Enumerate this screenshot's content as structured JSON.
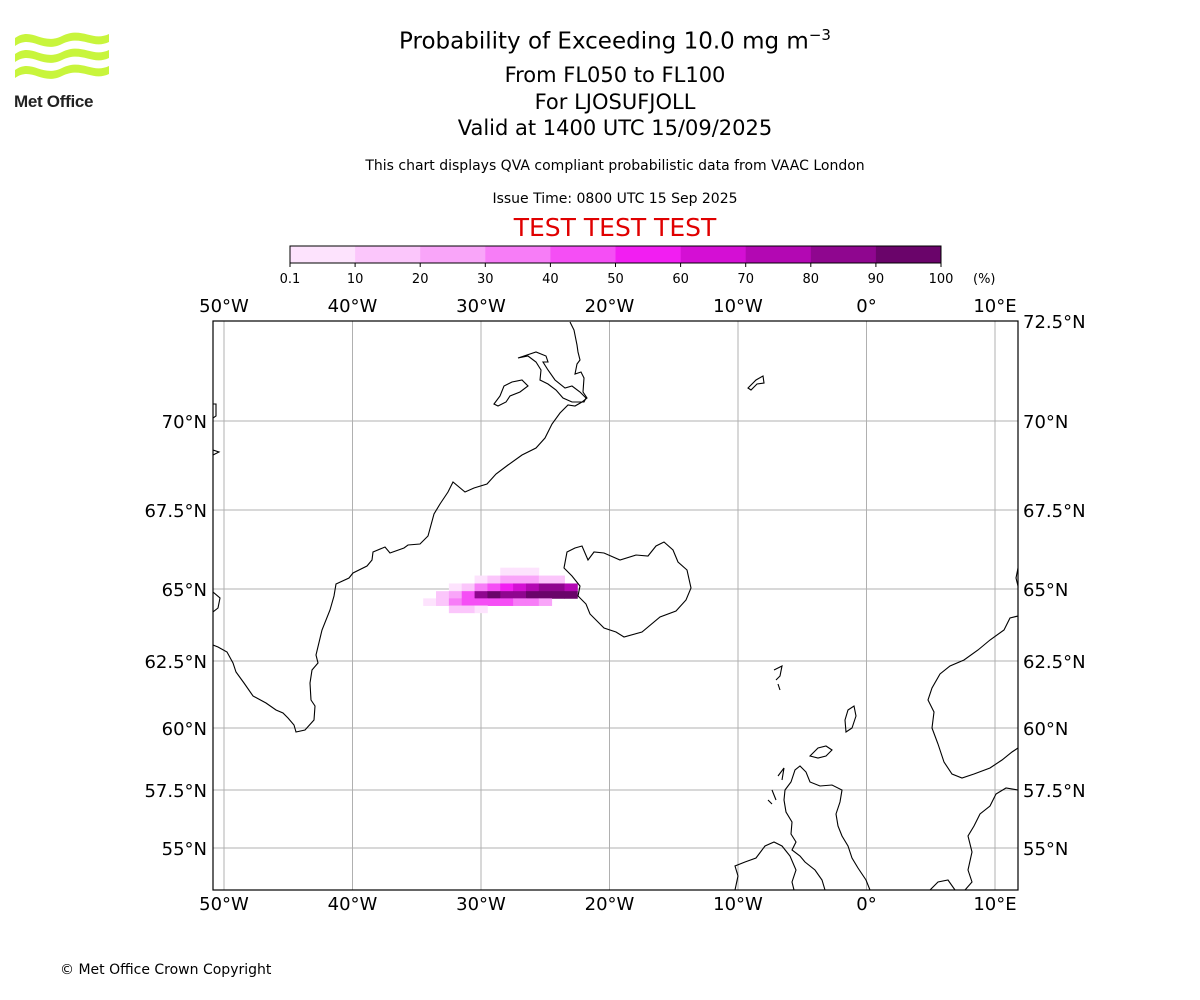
{
  "header": {
    "title_main": "Probability of Exceeding 10.0 mg m",
    "title_exponent": "−3",
    "levels": "From FL050 to FL100",
    "source": "For LJOSUFJOLL",
    "valid": "Valid at 1400 UTC 15/09/2025",
    "qva_note": "This chart displays QVA compliant probabilistic data from VAAC London",
    "issue_time": "Issue Time: 0800 UTC 15 Sep 2025",
    "test_banner": "TEST TEST TEST"
  },
  "logo": {
    "text": "Met Office",
    "color": "#c8f53c"
  },
  "footer": {
    "copyright": "© Met Office Crown Copyright"
  },
  "colorbar": {
    "ticks": [
      "0.1",
      "10",
      "20",
      "30",
      "40",
      "50",
      "60",
      "70",
      "80",
      "90",
      "100"
    ],
    "unit": "(%)",
    "colors": [
      "#fde3fd",
      "#fbc6fb",
      "#f9a5f9",
      "#f77df7",
      "#f54ef5",
      "#f21ef2",
      "#d40fd4",
      "#b308b3",
      "#8f068f",
      "#6a046a"
    ]
  },
  "map": {
    "lon_labels": [
      "50°W",
      "40°W",
      "30°W",
      "20°W",
      "10°W",
      "0°",
      "10°E"
    ],
    "lat_labels_left": [
      "70°N",
      "67.5°N",
      "65°N",
      "62.5°N",
      "60°N",
      "57.5°N",
      "55°N"
    ],
    "lat_labels_right": [
      "72.5°N",
      "70°N",
      "67.5°N",
      "65°N",
      "62.5°N",
      "60°N",
      "57.5°N",
      "55°N"
    ],
    "lon_range": [
      -50.7,
      12
    ],
    "lat_range": [
      53.5,
      72.5
    ],
    "grid_color": "#b0b0b0",
    "coast_color": "#000000"
  },
  "plume": {
    "description_units": "probability percent by lon/lat cell",
    "cells": [
      {
        "lon": -28,
        "lat": 65.55,
        "p": 5
      },
      {
        "lon": -27,
        "lat": 65.55,
        "p": 5
      },
      {
        "lon": -26,
        "lat": 65.55,
        "p": 3
      },
      {
        "lon": -30,
        "lat": 65.3,
        "p": 8
      },
      {
        "lon": -29,
        "lat": 65.3,
        "p": 15
      },
      {
        "lon": -28,
        "lat": 65.3,
        "p": 25
      },
      {
        "lon": -27,
        "lat": 65.3,
        "p": 25
      },
      {
        "lon": -26,
        "lat": 65.3,
        "p": 20
      },
      {
        "lon": -25,
        "lat": 65.3,
        "p": 15
      },
      {
        "lon": -24,
        "lat": 65.3,
        "p": 12
      },
      {
        "lon": -32,
        "lat": 65.05,
        "p": 8
      },
      {
        "lon": -31,
        "lat": 65.05,
        "p": 15
      },
      {
        "lon": -30,
        "lat": 65.05,
        "p": 30
      },
      {
        "lon": -29,
        "lat": 65.05,
        "p": 45
      },
      {
        "lon": -28,
        "lat": 65.05,
        "p": 55
      },
      {
        "lon": -27,
        "lat": 65.05,
        "p": 65
      },
      {
        "lon": -26,
        "lat": 65.05,
        "p": 75
      },
      {
        "lon": -25,
        "lat": 65.05,
        "p": 85
      },
      {
        "lon": -24,
        "lat": 65.05,
        "p": 85
      },
      {
        "lon": -23,
        "lat": 65.05,
        "p": 75
      },
      {
        "lon": -33,
        "lat": 64.8,
        "p": 10
      },
      {
        "lon": -32,
        "lat": 64.8,
        "p": 25
      },
      {
        "lon": -31,
        "lat": 64.8,
        "p": 45
      },
      {
        "lon": -30,
        "lat": 64.8,
        "p": 80
      },
      {
        "lon": -29,
        "lat": 64.8,
        "p": 90
      },
      {
        "lon": -28,
        "lat": 64.8,
        "p": 85
      },
      {
        "lon": -27,
        "lat": 64.8,
        "p": 88
      },
      {
        "lon": -26,
        "lat": 64.8,
        "p": 92
      },
      {
        "lon": -25,
        "lat": 64.8,
        "p": 95
      },
      {
        "lon": -24,
        "lat": 64.8,
        "p": 95
      },
      {
        "lon": -23,
        "lat": 64.8,
        "p": 95
      },
      {
        "lon": -34,
        "lat": 64.55,
        "p": 5
      },
      {
        "lon": -33,
        "lat": 64.55,
        "p": 15
      },
      {
        "lon": -32,
        "lat": 64.55,
        "p": 30
      },
      {
        "lon": -31,
        "lat": 64.55,
        "p": 45
      },
      {
        "lon": -30,
        "lat": 64.55,
        "p": 45
      },
      {
        "lon": -29,
        "lat": 64.55,
        "p": 40
      },
      {
        "lon": -28,
        "lat": 64.55,
        "p": 40
      },
      {
        "lon": -27,
        "lat": 64.55,
        "p": 35
      },
      {
        "lon": -26,
        "lat": 64.55,
        "p": 30
      },
      {
        "lon": -25,
        "lat": 64.55,
        "p": 20
      },
      {
        "lon": -32,
        "lat": 64.3,
        "p": 12
      },
      {
        "lon": -31,
        "lat": 64.3,
        "p": 10
      },
      {
        "lon": -30,
        "lat": 64.3,
        "p": 8
      }
    ]
  }
}
